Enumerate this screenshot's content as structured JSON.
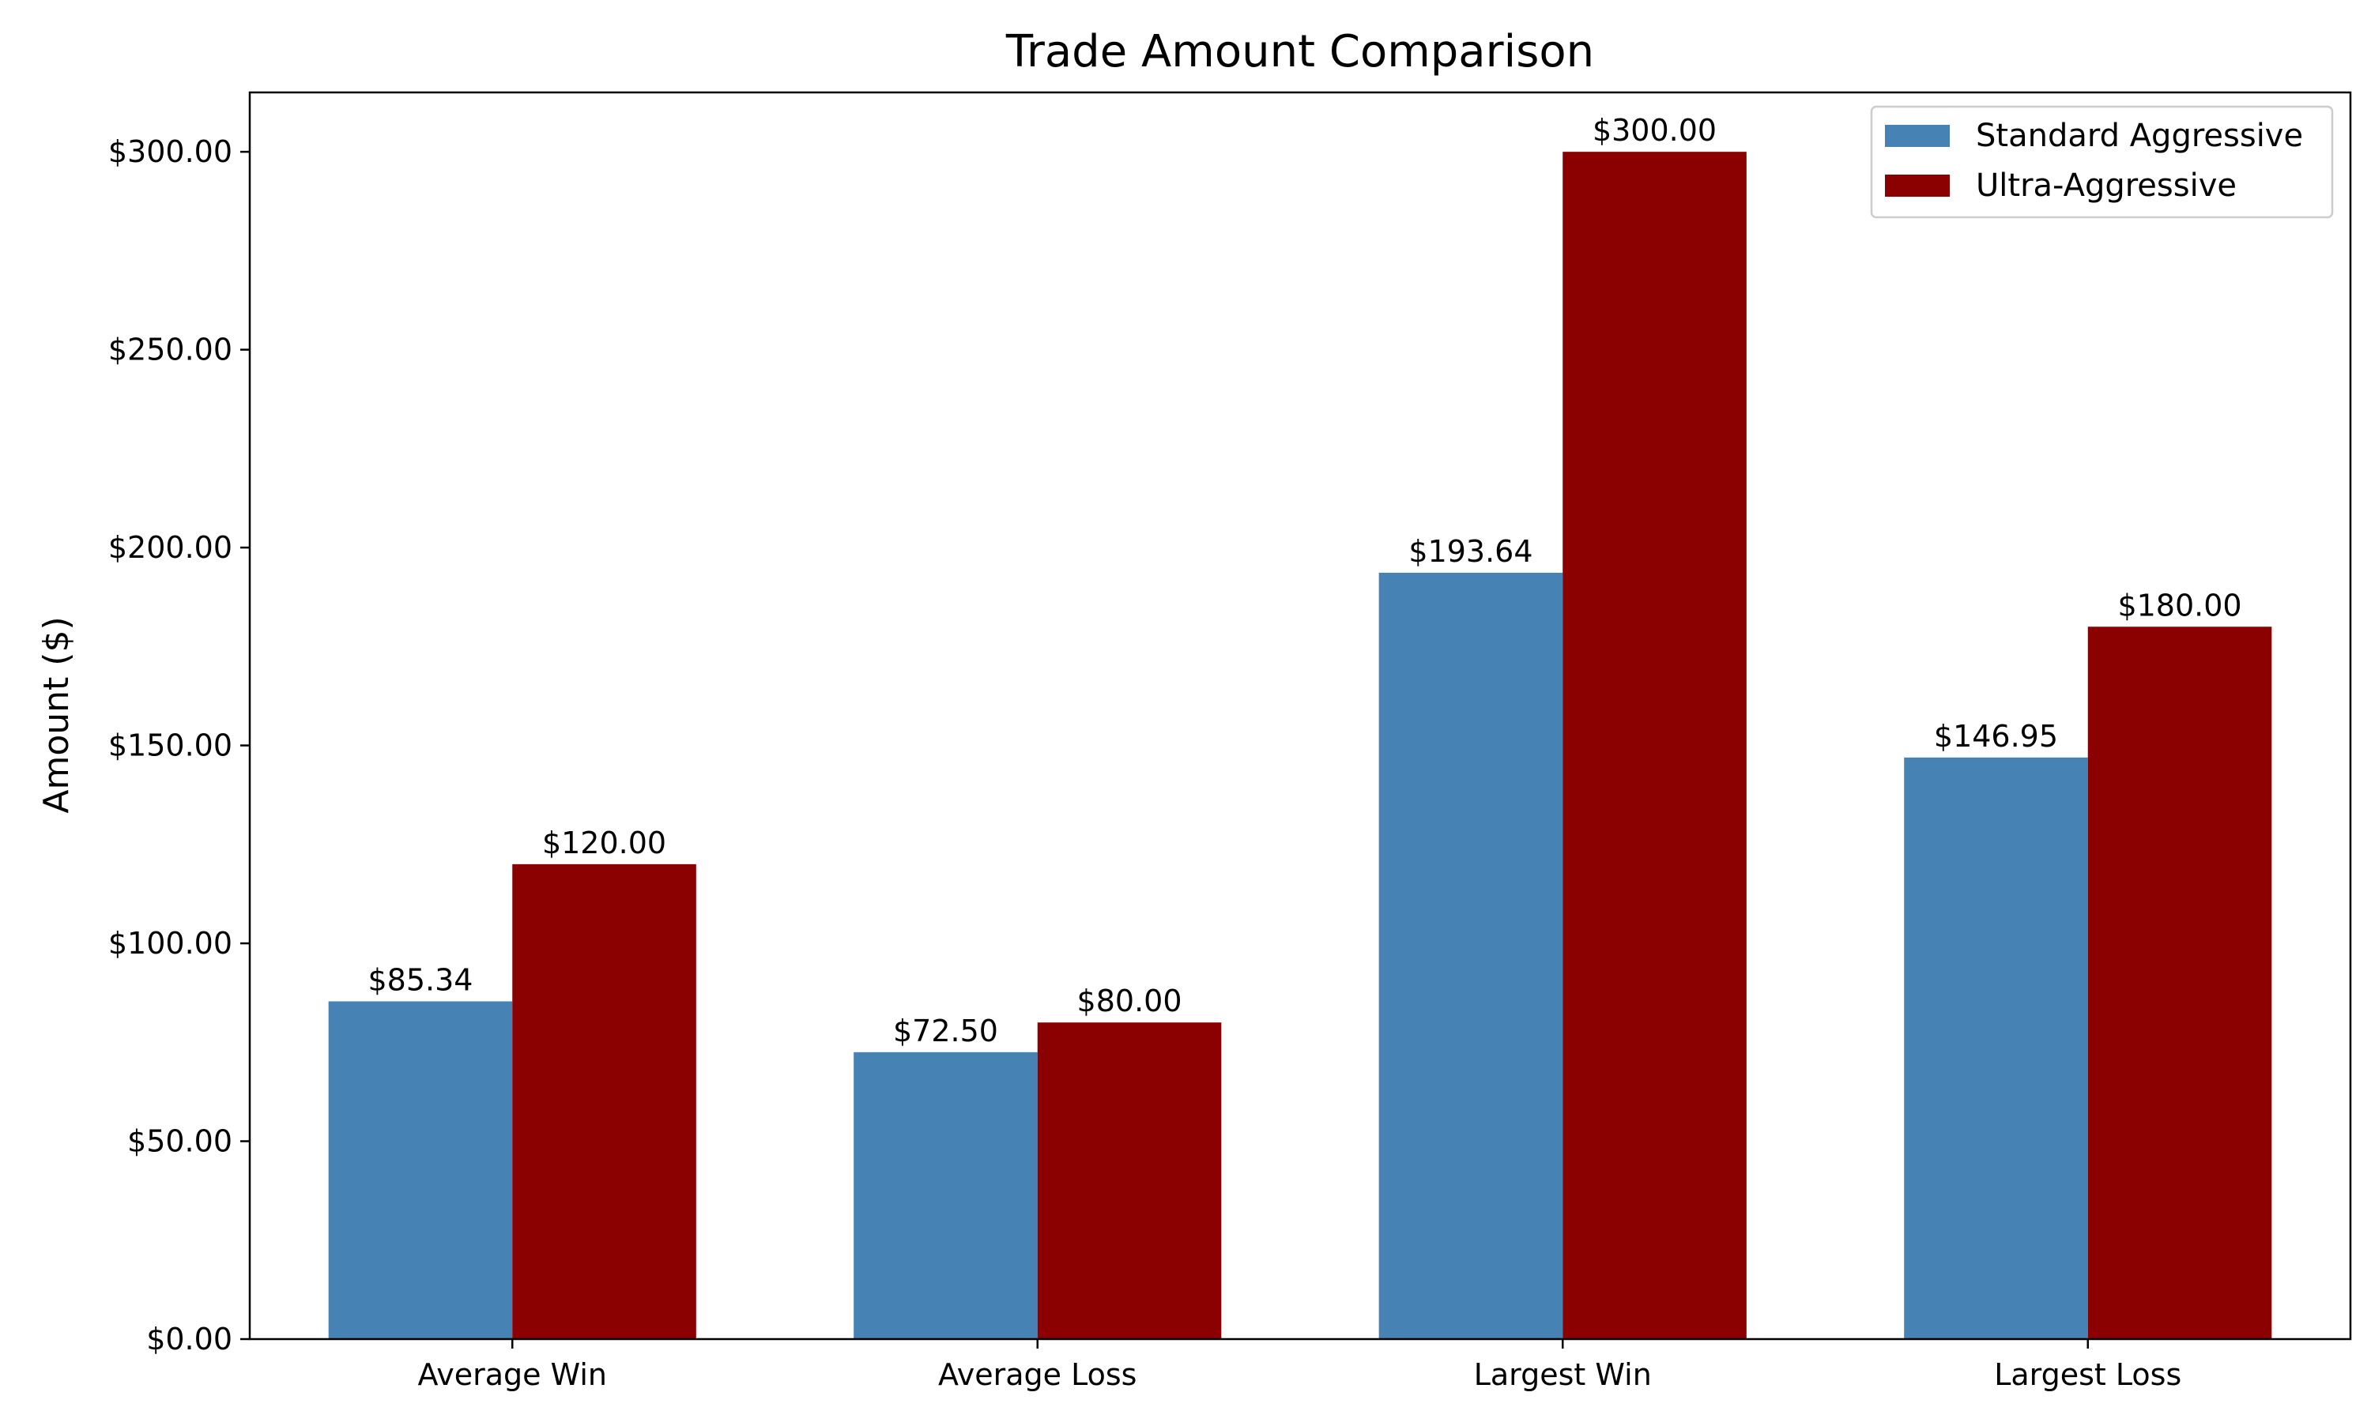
{
  "chart_data": {
    "type": "bar",
    "title": "Trade Amount Comparison",
    "xlabel": "",
    "ylabel": "Amount ($)",
    "categories": [
      "Average Win",
      "Average Loss",
      "Largest Win",
      "Largest Loss"
    ],
    "series": [
      {
        "name": "Standard Aggressive",
        "color": "#4682b4",
        "values": [
          85.34,
          72.5,
          193.64,
          146.95
        ],
        "labels": [
          "$85.34",
          "$72.50",
          "$193.64",
          "$146.95"
        ]
      },
      {
        "name": "Ultra-Aggressive",
        "color": "#8b0000",
        "values": [
          120.0,
          80.0,
          300.0,
          180.0
        ],
        "labels": [
          "$120.00",
          "$80.00",
          "$300.00",
          "$180.00"
        ]
      }
    ],
    "ylim": [
      0,
      315
    ],
    "yticks": [
      0,
      50,
      100,
      150,
      200,
      250,
      300
    ],
    "ytick_labels": [
      "$0.00",
      "$50.00",
      "$100.00",
      "$150.00",
      "$200.00",
      "$250.00",
      "$300.00"
    ],
    "grid": false,
    "legend_position": "top-right"
  }
}
